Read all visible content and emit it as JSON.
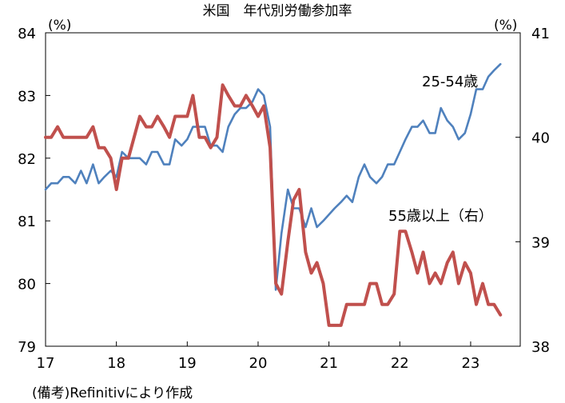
{
  "chart_data": {
    "type": "line",
    "title": "米国　年代別労働参加率",
    "left_axis": {
      "unit": "(%)",
      "ylim": [
        79,
        84
      ],
      "ticks": [
        "79",
        "80",
        "81",
        "82",
        "83",
        "84"
      ]
    },
    "right_axis": {
      "unit": "(%)",
      "ylim": [
        38,
        41
      ],
      "ticks": [
        "38",
        "39",
        "40",
        "41"
      ]
    },
    "x_axis": {
      "xlim": [
        2017,
        2023.7
      ],
      "ticks": [
        {
          "label": "17",
          "value": 2017
        },
        {
          "label": "18",
          "value": 2018
        },
        {
          "label": "19",
          "value": 2019
        },
        {
          "label": "20",
          "value": 2020
        },
        {
          "label": "21",
          "value": 2021
        },
        {
          "label": "22",
          "value": 2022
        },
        {
          "label": "23",
          "value": 2023
        }
      ]
    },
    "grid": false,
    "note": "(備考)Refinitivにより作成",
    "series": [
      {
        "name": "25-54歳",
        "axis": "left",
        "color": "#4f81bd",
        "label": "25-54歳",
        "points": [
          [
            2017.0,
            81.5
          ],
          [
            2017.08,
            81.6
          ],
          [
            2017.17,
            81.6
          ],
          [
            2017.25,
            81.7
          ],
          [
            2017.33,
            81.7
          ],
          [
            2017.42,
            81.6
          ],
          [
            2017.5,
            81.8
          ],
          [
            2017.58,
            81.6
          ],
          [
            2017.67,
            81.9
          ],
          [
            2017.75,
            81.6
          ],
          [
            2017.83,
            81.7
          ],
          [
            2017.92,
            81.8
          ],
          [
            2018.0,
            81.7
          ],
          [
            2018.08,
            82.1
          ],
          [
            2018.17,
            82.0
          ],
          [
            2018.25,
            82.0
          ],
          [
            2018.33,
            82.0
          ],
          [
            2018.42,
            81.9
          ],
          [
            2018.5,
            82.1
          ],
          [
            2018.58,
            82.1
          ],
          [
            2018.67,
            81.9
          ],
          [
            2018.75,
            81.9
          ],
          [
            2018.83,
            82.3
          ],
          [
            2018.92,
            82.2
          ],
          [
            2019.0,
            82.3
          ],
          [
            2019.08,
            82.5
          ],
          [
            2019.17,
            82.5
          ],
          [
            2019.25,
            82.5
          ],
          [
            2019.33,
            82.2
          ],
          [
            2019.42,
            82.2
          ],
          [
            2019.5,
            82.1
          ],
          [
            2019.58,
            82.5
          ],
          [
            2019.67,
            82.7
          ],
          [
            2019.75,
            82.8
          ],
          [
            2019.83,
            82.8
          ],
          [
            2019.92,
            82.9
          ],
          [
            2020.0,
            83.1
          ],
          [
            2020.08,
            83.0
          ],
          [
            2020.17,
            82.5
          ],
          [
            2020.25,
            79.9
          ],
          [
            2020.33,
            80.8
          ],
          [
            2020.42,
            81.5
          ],
          [
            2020.5,
            81.2
          ],
          [
            2020.58,
            81.2
          ],
          [
            2020.67,
            80.9
          ],
          [
            2020.75,
            81.2
          ],
          [
            2020.83,
            80.9
          ],
          [
            2020.92,
            81.0
          ],
          [
            2021.0,
            81.1
          ],
          [
            2021.08,
            81.2
          ],
          [
            2021.17,
            81.3
          ],
          [
            2021.25,
            81.4
          ],
          [
            2021.33,
            81.3
          ],
          [
            2021.42,
            81.7
          ],
          [
            2021.5,
            81.9
          ],
          [
            2021.58,
            81.7
          ],
          [
            2021.67,
            81.6
          ],
          [
            2021.75,
            81.7
          ],
          [
            2021.83,
            81.9
          ],
          [
            2021.92,
            81.9
          ],
          [
            2022.0,
            82.1
          ],
          [
            2022.08,
            82.3
          ],
          [
            2022.17,
            82.5
          ],
          [
            2022.25,
            82.5
          ],
          [
            2022.33,
            82.6
          ],
          [
            2022.42,
            82.4
          ],
          [
            2022.5,
            82.4
          ],
          [
            2022.58,
            82.8
          ],
          [
            2022.67,
            82.6
          ],
          [
            2022.75,
            82.5
          ],
          [
            2022.83,
            82.3
          ],
          [
            2022.92,
            82.4
          ],
          [
            2023.0,
            82.7
          ],
          [
            2023.08,
            83.1
          ],
          [
            2023.17,
            83.1
          ],
          [
            2023.25,
            83.3
          ],
          [
            2023.33,
            83.4
          ],
          [
            2023.42,
            83.5
          ]
        ]
      },
      {
        "name": "55歳以上（右）",
        "axis": "right",
        "color": "#c0504d",
        "label": "55歳以上（右）",
        "points": [
          [
            2017.0,
            40.0
          ],
          [
            2017.08,
            40.0
          ],
          [
            2017.17,
            40.1
          ],
          [
            2017.25,
            40.0
          ],
          [
            2017.33,
            40.0
          ],
          [
            2017.42,
            40.0
          ],
          [
            2017.5,
            40.0
          ],
          [
            2017.58,
            40.0
          ],
          [
            2017.67,
            40.1
          ],
          [
            2017.75,
            39.9
          ],
          [
            2017.83,
            39.9
          ],
          [
            2017.92,
            39.8
          ],
          [
            2018.0,
            39.5
          ],
          [
            2018.08,
            39.8
          ],
          [
            2018.17,
            39.8
          ],
          [
            2018.25,
            40.0
          ],
          [
            2018.33,
            40.2
          ],
          [
            2018.42,
            40.1
          ],
          [
            2018.5,
            40.1
          ],
          [
            2018.58,
            40.2
          ],
          [
            2018.67,
            40.1
          ],
          [
            2018.75,
            40.0
          ],
          [
            2018.83,
            40.2
          ],
          [
            2018.92,
            40.2
          ],
          [
            2019.0,
            40.2
          ],
          [
            2019.08,
            40.4
          ],
          [
            2019.17,
            40.0
          ],
          [
            2019.25,
            40.0
          ],
          [
            2019.33,
            39.9
          ],
          [
            2019.42,
            40.0
          ],
          [
            2019.5,
            40.5
          ],
          [
            2019.58,
            40.4
          ],
          [
            2019.67,
            40.3
          ],
          [
            2019.75,
            40.3
          ],
          [
            2019.83,
            40.4
          ],
          [
            2019.92,
            40.3
          ],
          [
            2020.0,
            40.2
          ],
          [
            2020.08,
            40.3
          ],
          [
            2020.17,
            39.9
          ],
          [
            2020.25,
            38.6
          ],
          [
            2020.33,
            38.5
          ],
          [
            2020.42,
            39.0
          ],
          [
            2020.5,
            39.4
          ],
          [
            2020.58,
            39.5
          ],
          [
            2020.67,
            38.9
          ],
          [
            2020.75,
            38.7
          ],
          [
            2020.83,
            38.8
          ],
          [
            2020.92,
            38.6
          ],
          [
            2021.0,
            38.2
          ],
          [
            2021.08,
            38.2
          ],
          [
            2021.17,
            38.2
          ],
          [
            2021.25,
            38.4
          ],
          [
            2021.33,
            38.4
          ],
          [
            2021.42,
            38.4
          ],
          [
            2021.5,
            38.4
          ],
          [
            2021.58,
            38.6
          ],
          [
            2021.67,
            38.6
          ],
          [
            2021.75,
            38.4
          ],
          [
            2021.83,
            38.4
          ],
          [
            2021.92,
            38.5
          ],
          [
            2022.0,
            39.1
          ],
          [
            2022.08,
            39.1
          ],
          [
            2022.17,
            38.9
          ],
          [
            2022.25,
            38.7
          ],
          [
            2022.33,
            38.9
          ],
          [
            2022.42,
            38.6
          ],
          [
            2022.5,
            38.7
          ],
          [
            2022.58,
            38.6
          ],
          [
            2022.67,
            38.8
          ],
          [
            2022.75,
            38.9
          ],
          [
            2022.83,
            38.6
          ],
          [
            2022.92,
            38.8
          ],
          [
            2023.0,
            38.7
          ],
          [
            2023.08,
            38.4
          ],
          [
            2023.17,
            38.6
          ],
          [
            2023.25,
            38.4
          ],
          [
            2023.33,
            38.4
          ],
          [
            2023.42,
            38.3
          ]
        ]
      }
    ]
  }
}
